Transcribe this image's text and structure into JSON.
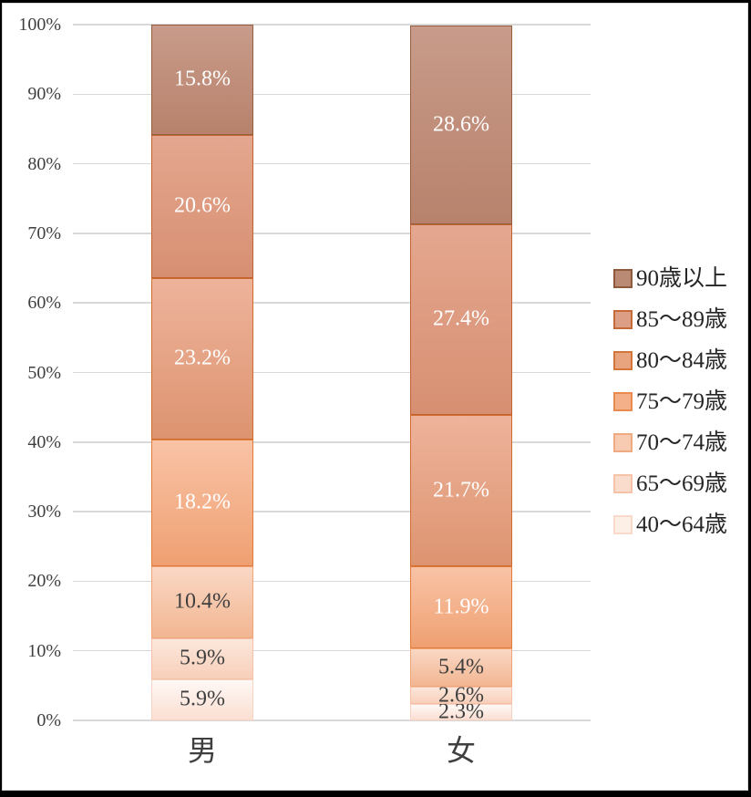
{
  "chart_data": {
    "type": "bar",
    "variant": "stacked-100-percent",
    "title": "",
    "categories": [
      "男",
      "女"
    ],
    "series": [
      {
        "name": "40〜64歳",
        "values": [
          5.9,
          2.3
        ],
        "labels": [
          "5.9%",
          "2.3%"
        ],
        "label_color": "#3f3f3f",
        "fill_top": "#fef8f5",
        "fill_bottom": "#fbdfd2",
        "border": "#f8d3c3",
        "swatch_fill": "#fdeee6",
        "swatch_border": "#f9d9ca"
      },
      {
        "name": "65〜69歳",
        "values": [
          5.9,
          2.6
        ],
        "labels": [
          "5.9%",
          "2.6%"
        ],
        "label_color": "#3f3f3f",
        "fill_top": "#fce7db",
        "fill_bottom": "#f8cfba",
        "border": "#f5c0a5",
        "swatch_fill": "#fadccd",
        "swatch_border": "#f5c3a8"
      },
      {
        "name": "70〜74歳",
        "values": [
          10.4,
          5.4
        ],
        "labels": [
          "10.4%",
          "5.4%"
        ],
        "label_color": "#3f3f3f",
        "fill_top": "#fad8c5",
        "fill_bottom": "#f2b692",
        "border": "#efa577",
        "swatch_fill": "#f7cab2",
        "swatch_border": "#f0aa82"
      },
      {
        "name": "75〜79歳",
        "values": [
          18.2,
          11.9
        ],
        "labels": [
          "18.2%",
          "11.9%"
        ],
        "label_color": "#ffffff",
        "fill_top": "#f9c3a6",
        "fill_bottom": "#efa072",
        "border": "#e27a39",
        "swatch_fill": "#f4b189",
        "swatch_border": "#e98a4f"
      },
      {
        "name": "80〜84歳",
        "values": [
          23.2,
          21.7
        ],
        "labels": [
          "23.2%",
          "21.7%"
        ],
        "label_color": "#ffffff",
        "fill_top": "#eeb39b",
        "fill_bottom": "#dd9470",
        "border": "#cf6c2e",
        "swatch_fill": "#e7a47f",
        "swatch_border": "#d4763c"
      },
      {
        "name": "85〜89歳",
        "values": [
          20.6,
          27.4
        ],
        "labels": [
          "20.6%",
          "27.4%"
        ],
        "label_color": "#ffffff",
        "fill_top": "#e4a78f",
        "fill_bottom": "#d78f72",
        "border": "#c26231",
        "swatch_fill": "#dc9e84",
        "swatch_border": "#c66a3a"
      },
      {
        "name": "90歳以上",
        "values": [
          15.8,
          28.6
        ],
        "labels": [
          "15.8%",
          "28.6%"
        ],
        "label_color": "#ffffff",
        "fill_top": "#c89b8a",
        "fill_bottom": "#b8826c",
        "border": "#955f3e",
        "swatch_fill": "#bb8a74",
        "swatch_border": "#8f5a3c"
      }
    ],
    "legend": {
      "position": "right",
      "order_top_to_bottom": [
        "90歳以上",
        "85〜89歳",
        "80〜84歳",
        "75〜79歳",
        "70〜74歳",
        "65〜69歳",
        "40〜64歳"
      ]
    },
    "y_axis": {
      "min": 0,
      "max": 100,
      "step": 10,
      "tick_labels": [
        "0%",
        "10%",
        "20%",
        "30%",
        "40%",
        "50%",
        "60%",
        "70%",
        "80%",
        "90%",
        "100%"
      ]
    },
    "grid": true,
    "colors": {
      "gridline": "#d9d9d9",
      "axis_text": "#3f3f3f",
      "background": "#ffffff",
      "frame": "#000000"
    }
  }
}
